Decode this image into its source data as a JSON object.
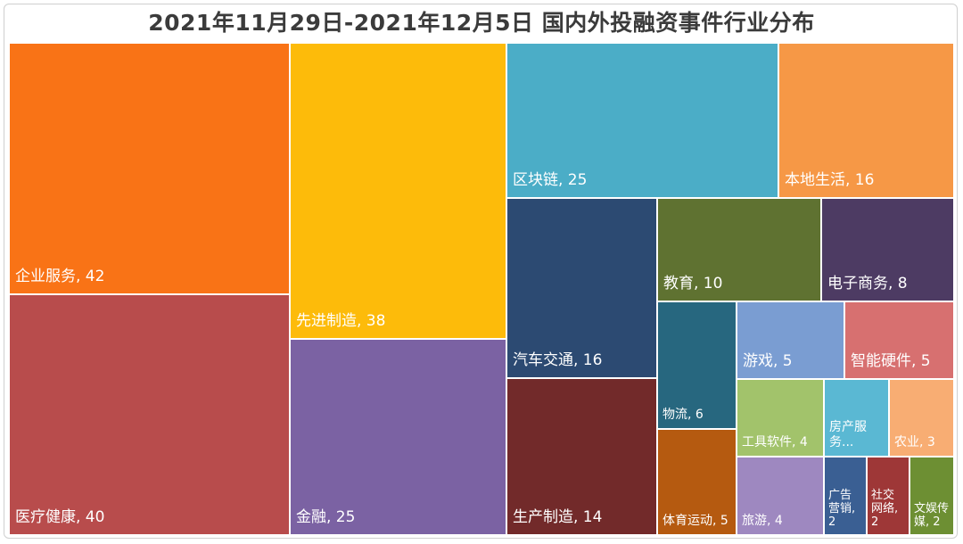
{
  "chart_data": {
    "type": "treemap",
    "title": "2021年11月29日-2021年12月5日 国内外投融资事件行业分布",
    "items": [
      {
        "label": "企业服务, 42",
        "name": "企业服务",
        "value": 42,
        "color": "#f97316"
      },
      {
        "label": "医疗健康, 40",
        "name": "医疗健康",
        "value": 40,
        "color": "#b84c4c"
      },
      {
        "label": "先进制造, 38",
        "name": "先进制造",
        "value": 38,
        "color": "#fdbb0a"
      },
      {
        "label": "金融, 25",
        "name": "金融",
        "value": 25,
        "color": "#7b62a3"
      },
      {
        "label": "区块链, 25",
        "name": "区块链",
        "value": 25,
        "color": "#4badc7"
      },
      {
        "label": "本地生活, 16",
        "name": "本地生活",
        "value": 16,
        "color": "#f69846"
      },
      {
        "label": "汽车交通, 16",
        "name": "汽车交通",
        "value": 16,
        "color": "#2c4a72"
      },
      {
        "label": "生产制造, 14",
        "name": "生产制造",
        "value": 14,
        "color": "#722a2a"
      },
      {
        "label": "教育, 10",
        "name": "教育",
        "value": 10,
        "color": "#5f7231"
      },
      {
        "label": "电子商务, 8",
        "name": "电子商务",
        "value": 8,
        "color": "#4d3b63"
      },
      {
        "label": "物流, 6",
        "name": "物流",
        "value": 6,
        "color": "#27677f"
      },
      {
        "label": "游戏, 5",
        "name": "游戏",
        "value": 5,
        "color": "#7a9dd2"
      },
      {
        "label": "智能硬件, 5",
        "name": "智能硬件",
        "value": 5,
        "color": "#d77070"
      },
      {
        "label": "体育运动, 5",
        "name": "体育运动",
        "value": 5,
        "color": "#b55a10"
      },
      {
        "label": "工具软件, 4",
        "name": "工具软件",
        "value": 4,
        "color": "#a2c36b"
      },
      {
        "label": "旅游, 4",
        "name": "旅游",
        "value": 4,
        "color": "#9e88c0"
      },
      {
        "label": "房产服务...",
        "name": "房产服务",
        "value": 3,
        "color": "#5ab8d3"
      },
      {
        "label": "农业, 3",
        "name": "农业",
        "value": 3,
        "color": "#f8ad73"
      },
      {
        "label": "广告营销, 2",
        "name": "广告营销",
        "value": 2,
        "color": "#3a5f93"
      },
      {
        "label": "社交网络, 2",
        "name": "社交网络",
        "value": 2,
        "color": "#9e3737"
      },
      {
        "label": "文娱传媒, 2",
        "name": "文娱传媒",
        "value": 2,
        "color": "#6d8f33"
      }
    ]
  }
}
